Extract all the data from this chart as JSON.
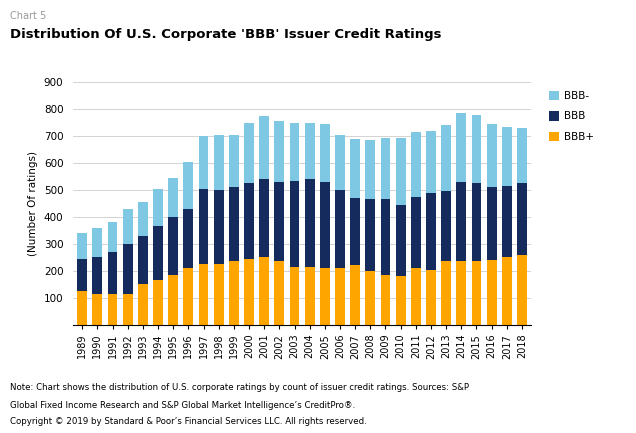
{
  "years": [
    1989,
    1990,
    1991,
    1992,
    1993,
    1994,
    1995,
    1996,
    1997,
    1998,
    1999,
    2000,
    2001,
    2002,
    2003,
    2004,
    2005,
    2006,
    2007,
    2008,
    2009,
    2010,
    2011,
    2012,
    2013,
    2014,
    2015,
    2016,
    2017,
    2018
  ],
  "BBB_plus": [
    125,
    115,
    115,
    115,
    150,
    165,
    185,
    210,
    225,
    225,
    235,
    245,
    250,
    235,
    215,
    215,
    210,
    210,
    220,
    200,
    185,
    180,
    210,
    205,
    235,
    235,
    235,
    240,
    250,
    260
  ],
  "BBB": [
    120,
    135,
    155,
    185,
    180,
    200,
    215,
    220,
    280,
    275,
    275,
    280,
    290,
    295,
    320,
    325,
    320,
    290,
    250,
    265,
    280,
    265,
    265,
    285,
    260,
    295,
    290,
    270,
    265,
    265
  ],
  "BBB_minus": [
    95,
    110,
    110,
    130,
    125,
    140,
    145,
    175,
    195,
    205,
    195,
    225,
    235,
    225,
    215,
    210,
    215,
    205,
    220,
    220,
    230,
    250,
    240,
    230,
    245,
    255,
    255,
    235,
    220,
    205
  ],
  "color_BBB_plus": "#FFA500",
  "color_BBB": "#152B5E",
  "color_BBB_minus": "#7EC8E3",
  "title": "Distribution Of U.S. Corporate 'BBB' Issuer Credit Ratings",
  "chart_label": "Chart 5",
  "ylabel": "(Number Of ratings)",
  "ylim": [
    0,
    900
  ],
  "yticks": [
    0,
    100,
    200,
    300,
    400,
    500,
    600,
    700,
    800,
    900
  ],
  "note_line1": "Note: Chart shows the distribution of U.S. corporate ratings by count of issuer credit ratings. Sources: S&P",
  "note_line2": "Global Fixed Income Research and S&P Global Market Intelligence’s CreditPro®.",
  "note_line3": "Copyright © 2019 by Standard & Poor’s Financial Services LLC. All rights reserved."
}
